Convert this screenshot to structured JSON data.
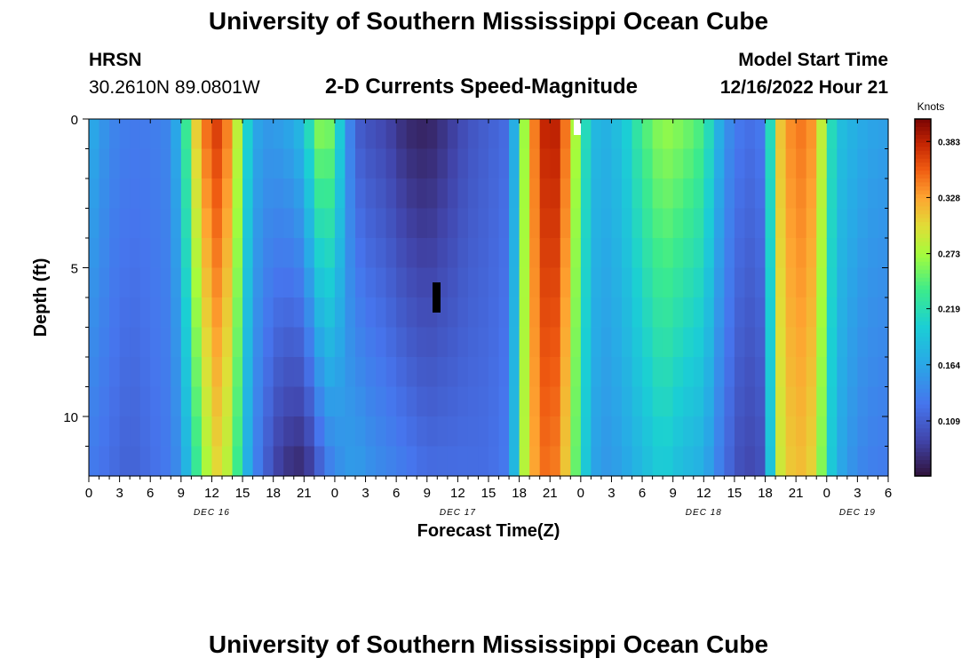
{
  "header": {
    "title": "University of Southern Mississippi Ocean Cube",
    "station": "HRSN",
    "coords": "30.2610N  89.0801W",
    "plot_title": "2-D Currents Speed-Magnitude",
    "model_start_label": "Model Start Time",
    "model_start_value": "12/16/2022 Hour 21"
  },
  "footer": {
    "title": "University of Southern Mississippi Ocean Cube"
  },
  "chart_data": {
    "type": "heatmap",
    "title": "2-D Currents Speed-Magnitude",
    "xlabel": "Forecast Time(Z)",
    "ylabel": "Depth (ft)",
    "x_tick_labels": [
      "0",
      "3",
      "6",
      "9",
      "12",
      "15",
      "18",
      "21",
      "0",
      "3",
      "6",
      "9",
      "12",
      "15",
      "18",
      "21",
      "0",
      "3",
      "6",
      "9",
      "12",
      "15",
      "18",
      "21",
      "0",
      "3",
      "6"
    ],
    "date_labels": [
      {
        "label": "DEC 16",
        "hour": 12
      },
      {
        "label": "DEC 17",
        "hour": 36
      },
      {
        "label": "DEC 18",
        "hour": 60
      },
      {
        "label": "DEC 19",
        "hour": 75
      }
    ],
    "x_range_hours": [
      0,
      78
    ],
    "y_ticks": [
      0,
      5,
      10
    ],
    "y_range_ft": [
      0,
      12
    ],
    "colorbar": {
      "title": "Knots",
      "tick_labels": [
        "0.383",
        "0.328",
        "0.273",
        "0.219",
        "0.164",
        "0.109"
      ],
      "min": 0.055,
      "max": 0.405
    },
    "depth_levels": 12,
    "time_hours": [
      0,
      1,
      2,
      3,
      4,
      5,
      6,
      7,
      8,
      9,
      10,
      11,
      12,
      13,
      14,
      15,
      16,
      17,
      18,
      19,
      20,
      21,
      22,
      23,
      24,
      25,
      26,
      27,
      28,
      29,
      30,
      31,
      32,
      33,
      34,
      35,
      36,
      37,
      38,
      39,
      40,
      41,
      42,
      43,
      44,
      45,
      46,
      47,
      48,
      49,
      50,
      51,
      52,
      53,
      54,
      55,
      56,
      57,
      58,
      59,
      60,
      61,
      62,
      63,
      64,
      65,
      66,
      67,
      68,
      69,
      70,
      71,
      72,
      73,
      74,
      75,
      76,
      77,
      78
    ],
    "speed_keypoints_surface": [
      [
        0,
        0.17
      ],
      [
        1,
        0.16
      ],
      [
        2,
        0.14
      ],
      [
        4,
        0.13
      ],
      [
        6,
        0.13
      ],
      [
        8,
        0.14
      ],
      [
        9,
        0.19
      ],
      [
        10,
        0.28
      ],
      [
        11,
        0.34
      ],
      [
        12.5,
        0.37
      ],
      [
        14,
        0.33
      ],
      [
        15,
        0.24
      ],
      [
        16,
        0.17
      ],
      [
        17,
        0.155
      ],
      [
        18,
        0.155
      ],
      [
        20,
        0.17
      ],
      [
        21,
        0.19
      ],
      [
        22,
        0.25
      ],
      [
        23,
        0.28
      ],
      [
        24,
        0.24
      ],
      [
        25,
        0.16
      ],
      [
        26,
        0.11
      ],
      [
        27,
        0.1
      ],
      [
        29,
        0.09
      ],
      [
        31,
        0.07
      ],
      [
        33,
        0.065
      ],
      [
        35,
        0.08
      ],
      [
        37,
        0.1
      ],
      [
        39,
        0.11
      ],
      [
        41,
        0.12
      ],
      [
        42.5,
        0.27
      ],
      [
        44,
        0.38
      ],
      [
        46,
        0.385
      ],
      [
        47,
        0.31
      ],
      [
        48,
        0.24
      ],
      [
        49,
        0.19
      ],
      [
        50,
        0.17
      ],
      [
        52,
        0.19
      ],
      [
        54,
        0.24
      ],
      [
        56,
        0.27
      ],
      [
        58,
        0.26
      ],
      [
        60,
        0.24
      ],
      [
        62,
        0.15
      ],
      [
        64,
        0.12
      ],
      [
        66,
        0.13
      ],
      [
        67,
        0.3
      ],
      [
        69,
        0.35
      ],
      [
        71,
        0.33
      ],
      [
        72,
        0.24
      ],
      [
        73,
        0.19
      ],
      [
        75,
        0.17
      ],
      [
        77,
        0.16
      ],
      [
        78,
        0.16
      ]
    ],
    "speed_keypoints_bottom": [
      [
        0,
        0.13
      ],
      [
        2,
        0.12
      ],
      [
        4,
        0.11
      ],
      [
        6,
        0.12
      ],
      [
        8,
        0.13
      ],
      [
        9,
        0.15
      ],
      [
        10,
        0.2
      ],
      [
        11,
        0.26
      ],
      [
        12.5,
        0.3
      ],
      [
        14,
        0.27
      ],
      [
        15,
        0.2
      ],
      [
        16,
        0.14
      ],
      [
        17,
        0.12
      ],
      [
        18,
        0.09
      ],
      [
        20,
        0.07
      ],
      [
        21,
        0.07
      ],
      [
        22,
        0.09
      ],
      [
        23,
        0.12
      ],
      [
        24,
        0.14
      ],
      [
        25,
        0.15
      ],
      [
        26,
        0.16
      ],
      [
        27,
        0.15
      ],
      [
        29,
        0.14
      ],
      [
        31,
        0.13
      ],
      [
        33,
        0.12
      ],
      [
        35,
        0.12
      ],
      [
        37,
        0.12
      ],
      [
        39,
        0.12
      ],
      [
        41,
        0.13
      ],
      [
        42.5,
        0.28
      ],
      [
        44,
        0.35
      ],
      [
        46,
        0.34
      ],
      [
        47,
        0.28
      ],
      [
        48,
        0.22
      ],
      [
        49,
        0.17
      ],
      [
        50,
        0.15
      ],
      [
        52,
        0.16
      ],
      [
        54,
        0.18
      ],
      [
        56,
        0.2
      ],
      [
        58,
        0.18
      ],
      [
        60,
        0.17
      ],
      [
        62,
        0.12
      ],
      [
        64,
        0.09
      ],
      [
        66,
        0.1
      ],
      [
        67,
        0.28
      ],
      [
        69,
        0.32
      ],
      [
        71,
        0.3
      ],
      [
        72,
        0.22
      ],
      [
        73,
        0.17
      ],
      [
        75,
        0.14
      ],
      [
        77,
        0.13
      ],
      [
        78,
        0.13
      ]
    ]
  }
}
